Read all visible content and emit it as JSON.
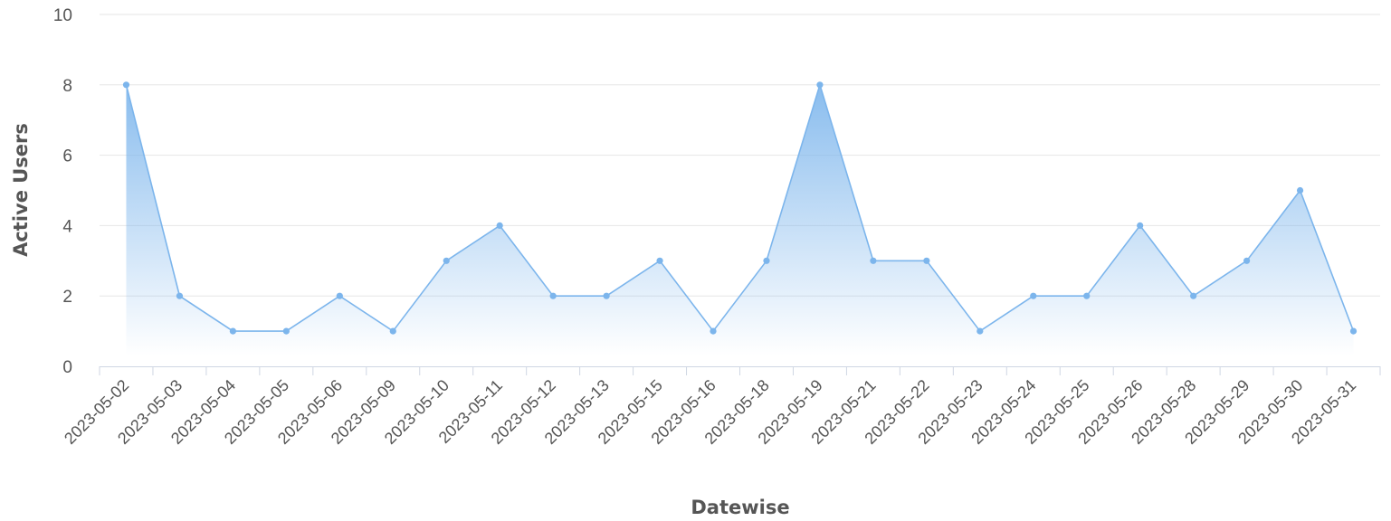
{
  "chart_data": {
    "type": "area",
    "title": "",
    "xlabel": "Datewise",
    "ylabel": "Active Users",
    "ylim": [
      0,
      10
    ],
    "y_ticks": [
      "0",
      "2",
      "4",
      "6",
      "8",
      "10"
    ],
    "grid": true,
    "legend": "none",
    "categories": [
      "2023-05-02",
      "2023-05-03",
      "2023-05-04",
      "2023-05-05",
      "2023-05-06",
      "2023-05-09",
      "2023-05-10",
      "2023-05-11",
      "2023-05-12",
      "2023-05-13",
      "2023-05-15",
      "2023-05-16",
      "2023-05-18",
      "2023-05-19",
      "2023-05-21",
      "2023-05-22",
      "2023-05-23",
      "2023-05-24",
      "2023-05-25",
      "2023-05-26",
      "2023-05-28",
      "2023-05-29",
      "2023-05-30",
      "2023-05-31"
    ],
    "series": [
      {
        "values": [
          8,
          2,
          1,
          1,
          2,
          1,
          3,
          4,
          2,
          2,
          3,
          1,
          3,
          8,
          3,
          3,
          1,
          2,
          2,
          4,
          2,
          3,
          5,
          1
        ]
      }
    ],
    "colors": {
      "line": "#7cb5ec",
      "fill_top": "#7cb5ec",
      "grid": "#e6e6e6",
      "axis": "#cfd6e3",
      "text": "#555555"
    }
  }
}
